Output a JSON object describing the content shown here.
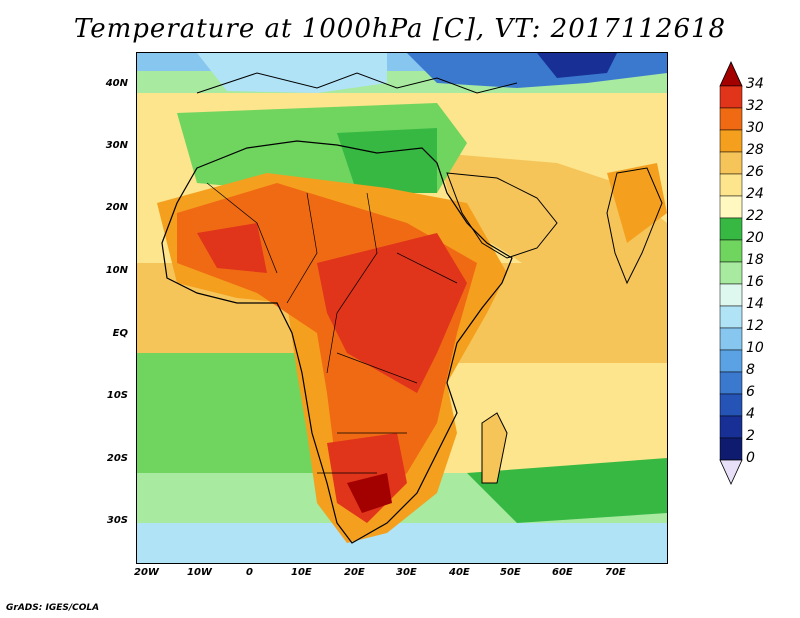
{
  "title": "Temperature at 1000hPa [C], VT: 2017112618",
  "footer": "GrADS: IGES/COLA",
  "y_ticks": [
    "40N",
    "30N",
    "20N",
    "10N",
    "EQ",
    "10S",
    "20S",
    "30S"
  ],
  "x_ticks": [
    "20W",
    "10W",
    "0",
    "10E",
    "20E",
    "30E",
    "40E",
    "50E",
    "60E",
    "70E"
  ],
  "colorbar": {
    "levels": [
      "34",
      "32",
      "30",
      "28",
      "26",
      "24",
      "22",
      "20",
      "18",
      "16",
      "14",
      "12",
      "10",
      "8",
      "6",
      "4",
      "2",
      "0"
    ],
    "colors": [
      "#a30000",
      "#e0341b",
      "#f06a13",
      "#f4a01e",
      "#f6c55a",
      "#fce58c",
      "#fff8c0",
      "#36b843",
      "#6fd55f",
      "#a7eaa0",
      "#dff8ef",
      "#b1e3f7",
      "#86c6ef",
      "#5aa2e3",
      "#3b79cf",
      "#2553b6",
      "#183096",
      "#0e1b6e",
      "#e8e0f8"
    ]
  }
}
